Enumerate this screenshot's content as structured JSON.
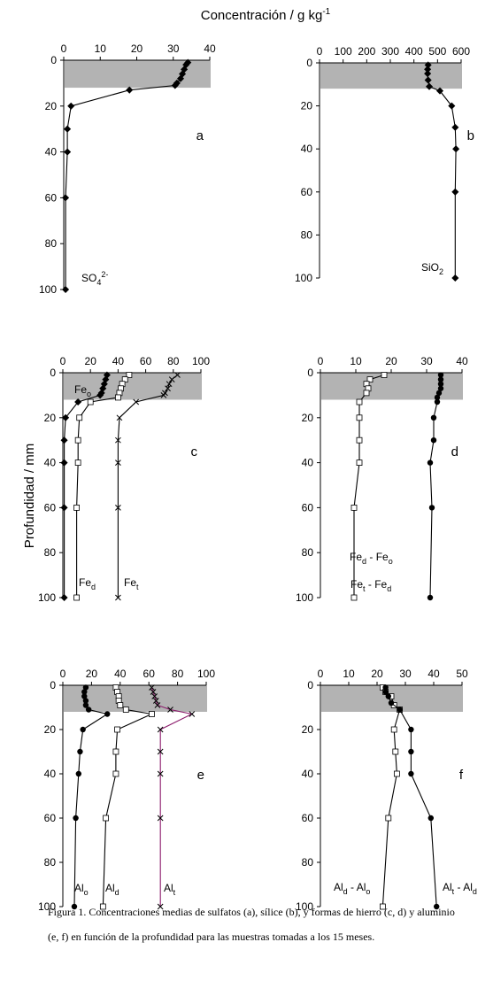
{
  "figure": {
    "top_axis_label": "Concentración / g kg",
    "top_axis_label_sup": "-1",
    "y_axis_label": "Profundidad / mm"
  },
  "caption": {
    "line1": "Figura 1.  Concentraciones medias de sulfatos (a), sílice (b), y formas de hierro (c, d) y aluminio",
    "line2": "(e, f) en función de la profundidad para las muestras tomadas a los 15 meses."
  },
  "colors": {
    "band": "#b3b3b3",
    "line": "#000000",
    "alt_line": "#8b1a6b"
  },
  "chart_data": [
    {
      "panel": "a",
      "type": "line",
      "xlim": [
        0,
        40
      ],
      "xticks": [
        0,
        10,
        20,
        30,
        40
      ],
      "ylim": [
        0,
        100
      ],
      "yticks": [
        0,
        20,
        40,
        60,
        80,
        100
      ],
      "band": [
        0,
        12
      ],
      "series": [
        {
          "name_parts": [
            [
              "SO",
              ""
            ],
            [
              "4",
              "sub"
            ],
            [
              "2-",
              "sup"
            ]
          ],
          "marker": "diamond-filled",
          "color": "#000000",
          "points": [
            [
              34,
              1
            ],
            [
              33.5,
              2
            ],
            [
              33,
              4
            ],
            [
              32.5,
              6
            ],
            [
              32,
              8
            ],
            [
              31,
              10
            ],
            [
              30.5,
              11
            ],
            [
              18,
              13
            ],
            [
              2,
              20
            ],
            [
              1,
              30
            ],
            [
              1,
              40
            ],
            [
              0.5,
              60
            ],
            [
              0.5,
              100
            ]
          ]
        }
      ]
    },
    {
      "panel": "b",
      "type": "line",
      "xlim": [
        0,
        600
      ],
      "xticks": [
        0,
        100,
        200,
        300,
        400,
        500,
        600
      ],
      "ylim": [
        0,
        100
      ],
      "yticks": [
        0,
        20,
        40,
        60,
        80,
        100
      ],
      "band": [
        0,
        12
      ],
      "series": [
        {
          "name_parts": [
            [
              "SiO",
              ""
            ],
            [
              "2",
              "sub"
            ]
          ],
          "marker": "diamond-filled",
          "color": "#000000",
          "points": [
            [
              460,
              1
            ],
            [
              458,
              3
            ],
            [
              458,
              5
            ],
            [
              460,
              8
            ],
            [
              465,
              11
            ],
            [
              510,
              13
            ],
            [
              560,
              20
            ],
            [
              575,
              30
            ],
            [
              578,
              40
            ],
            [
              575,
              60
            ],
            [
              575,
              100
            ]
          ]
        }
      ]
    },
    {
      "panel": "c",
      "type": "line",
      "xlim": [
        0,
        100
      ],
      "xticks": [
        0,
        20,
        40,
        60,
        80,
        100
      ],
      "ylim": [
        0,
        100
      ],
      "yticks": [
        0,
        20,
        40,
        60,
        80,
        100
      ],
      "band": [
        0,
        12
      ],
      "series": [
        {
          "name_parts": [
            [
              "Fe",
              ""
            ],
            [
              "o",
              "sub"
            ]
          ],
          "marker": "diamond-filled",
          "color": "#000000",
          "points": [
            [
              32,
              1
            ],
            [
              31,
              3
            ],
            [
              30,
              5
            ],
            [
              29,
              7
            ],
            [
              28,
              9
            ],
            [
              27,
              10
            ],
            [
              11,
              13
            ],
            [
              2,
              20
            ],
            [
              1,
              30
            ],
            [
              1,
              40
            ],
            [
              1,
              60
            ],
            [
              1,
              100
            ]
          ]
        },
        {
          "name_parts": [
            [
              "Fe",
              ""
            ],
            [
              "d",
              "sub"
            ]
          ],
          "marker": "square-open",
          "color": "#000000",
          "points": [
            [
              48,
              1
            ],
            [
              45,
              3
            ],
            [
              43,
              5
            ],
            [
              42,
              7
            ],
            [
              41,
              9
            ],
            [
              40,
              11
            ],
            [
              20,
              13
            ],
            [
              12,
              20
            ],
            [
              11,
              30
            ],
            [
              11,
              40
            ],
            [
              10,
              60
            ],
            [
              10,
              100
            ]
          ]
        },
        {
          "name_parts": [
            [
              "Fe",
              ""
            ],
            [
              "t",
              "sub"
            ]
          ],
          "marker": "cross",
          "color": "#000000",
          "points": [
            [
              83,
              1
            ],
            [
              79,
              3
            ],
            [
              77,
              5
            ],
            [
              76,
              7
            ],
            [
              74,
              9
            ],
            [
              73,
              10
            ],
            [
              53,
              13
            ],
            [
              41,
              20
            ],
            [
              40,
              30
            ],
            [
              40,
              40
            ],
            [
              40,
              60
            ],
            [
              40,
              100
            ]
          ]
        }
      ]
    },
    {
      "panel": "d",
      "type": "line",
      "xlim": [
        0,
        40
      ],
      "xticks": [
        0,
        10,
        20,
        30,
        40
      ],
      "ylim": [
        0,
        100
      ],
      "yticks": [
        0,
        20,
        40,
        60,
        80,
        100
      ],
      "band": [
        0,
        12
      ],
      "series": [
        {
          "name_parts": [
            [
              "Fe",
              ""
            ],
            [
              "d",
              "sub"
            ],
            [
              " - Fe",
              ""
            ],
            [
              "o",
              "sub"
            ]
          ],
          "marker": "square-open",
          "color": "#000000",
          "points": [
            [
              18,
              1
            ],
            [
              14,
              3
            ],
            [
              13,
              5
            ],
            [
              13.5,
              7
            ],
            [
              13,
              9
            ],
            [
              11,
              13
            ],
            [
              11,
              20
            ],
            [
              11,
              30
            ],
            [
              11,
              40
            ],
            [
              9.5,
              60
            ],
            [
              9.5,
              100
            ]
          ]
        },
        {
          "name_parts": [
            [
              "Fe",
              ""
            ],
            [
              "t",
              "sub"
            ],
            [
              " - Fe",
              ""
            ],
            [
              "d",
              "sub"
            ]
          ],
          "marker": "circle-filled",
          "color": "#000000",
          "points": [
            [
              34,
              1
            ],
            [
              34,
              3
            ],
            [
              34,
              5
            ],
            [
              34,
              7
            ],
            [
              33.5,
              9
            ],
            [
              33,
              11
            ],
            [
              33,
              13
            ],
            [
              32,
              20
            ],
            [
              32,
              30
            ],
            [
              31,
              40
            ],
            [
              31.5,
              60
            ],
            [
              31,
              100
            ]
          ]
        }
      ]
    },
    {
      "panel": "e",
      "type": "line",
      "xlim": [
        0,
        100
      ],
      "xticks": [
        0,
        20,
        40,
        60,
        80,
        100
      ],
      "ylim": [
        0,
        100
      ],
      "yticks": [
        0,
        20,
        40,
        60,
        80,
        100
      ],
      "band": [
        0,
        12
      ],
      "series": [
        {
          "name_parts": [
            [
              "Al",
              ""
            ],
            [
              "o",
              "sub"
            ]
          ],
          "marker": "circle-filled",
          "color": "#000000",
          "points": [
            [
              16,
              1
            ],
            [
              15,
              3
            ],
            [
              15,
              5
            ],
            [
              16,
              7
            ],
            [
              16,
              9
            ],
            [
              18,
              11
            ],
            [
              31,
              13
            ],
            [
              14,
              20
            ],
            [
              12,
              30
            ],
            [
              11,
              40
            ],
            [
              9,
              60
            ],
            [
              8,
              100
            ]
          ]
        },
        {
          "name_parts": [
            [
              "Al",
              ""
            ],
            [
              "d",
              "sub"
            ]
          ],
          "marker": "square-open",
          "color": "#000000",
          "points": [
            [
              37,
              1
            ],
            [
              38,
              3
            ],
            [
              39,
              5
            ],
            [
              39,
              7
            ],
            [
              40,
              9
            ],
            [
              44,
              11
            ],
            [
              62,
              13
            ],
            [
              38,
              20
            ],
            [
              37,
              30
            ],
            [
              37,
              40
            ],
            [
              30,
              60
            ],
            [
              28,
              100
            ]
          ]
        },
        {
          "name_parts": [
            [
              "Al",
              ""
            ],
            [
              "t",
              "sub"
            ]
          ],
          "marker": "cross",
          "color": "#8b1a6b",
          "points": [
            [
              62,
              1
            ],
            [
              63,
              3
            ],
            [
              64,
              5
            ],
            [
              65,
              7
            ],
            [
              66,
              9
            ],
            [
              75,
              11
            ],
            [
              90,
              13
            ],
            [
              68,
              20
            ],
            [
              68,
              30
            ],
            [
              68,
              40
            ],
            [
              68,
              60
            ],
            [
              68,
              100
            ]
          ]
        }
      ]
    },
    {
      "panel": "f",
      "type": "line",
      "xlim": [
        0,
        50
      ],
      "xticks": [
        0,
        10,
        20,
        30,
        40,
        50
      ],
      "ylim": [
        0,
        100
      ],
      "yticks": [
        0,
        20,
        40,
        60,
        80,
        100
      ],
      "band": [
        0,
        12
      ],
      "series": [
        {
          "name_parts": [
            [
              "Al",
              ""
            ],
            [
              "d",
              "sub"
            ],
            [
              " - Al",
              ""
            ],
            [
              "o",
              "sub"
            ]
          ],
          "marker": "square-open",
          "color": "#000000",
          "points": [
            [
              22,
              1
            ],
            [
              23,
              3
            ],
            [
              25,
              5
            ],
            [
              26,
              9
            ],
            [
              28,
              11
            ],
            [
              26,
              20
            ],
            [
              26.5,
              30
            ],
            [
              27,
              40
            ],
            [
              24,
              60
            ],
            [
              22,
              100
            ]
          ]
        },
        {
          "name_parts": [
            [
              "Al",
              ""
            ],
            [
              "t",
              "sub"
            ],
            [
              " - Al",
              ""
            ],
            [
              "d",
              "sub"
            ]
          ],
          "marker": "circle-filled",
          "color": "#000000",
          "points": [
            [
              23,
              1
            ],
            [
              23,
              3
            ],
            [
              24,
              5
            ],
            [
              25,
              8
            ],
            [
              28,
              11
            ],
            [
              32,
              20
            ],
            [
              32,
              30
            ],
            [
              32,
              40
            ],
            [
              39,
              60
            ],
            [
              41,
              100
            ]
          ]
        }
      ]
    }
  ]
}
